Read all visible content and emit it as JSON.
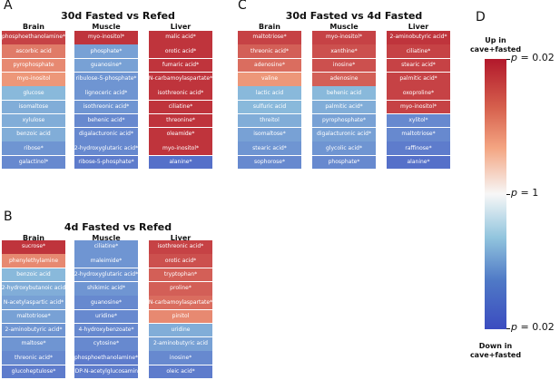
{
  "chart_data": [
    {
      "panel": "A",
      "type": "heatmap",
      "title": "30d Fasted vs Refed",
      "columns": [
        {
          "name": "Brain",
          "rows": [
            {
              "label": "phosphoethanolamine*",
              "value": 0.85
            },
            {
              "label": "ascorbic acid",
              "value": 0.65
            },
            {
              "label": "pyrophosphate",
              "value": 0.6
            },
            {
              "label": "myo-inositol",
              "value": 0.55
            },
            {
              "label": "glucose",
              "value": -0.55
            },
            {
              "label": "isomaltose",
              "value": -0.6
            },
            {
              "label": "xylulose",
              "value": -0.6
            },
            {
              "label": "benzoic acid",
              "value": -0.6
            },
            {
              "label": "ribose*",
              "value": -0.7
            },
            {
              "label": "galactinol*",
              "value": -0.75
            }
          ]
        },
        {
          "name": "Muscle",
          "rows": [
            {
              "label": "myo-inositol*",
              "value": 0.9
            },
            {
              "label": "phosphate*",
              "value": -0.65
            },
            {
              "label": "guanosine*",
              "value": -0.65
            },
            {
              "label": "ribulose-5-phosphate*",
              "value": -0.7
            },
            {
              "label": "lignoceric acid*",
              "value": -0.7
            },
            {
              "label": "isothreonic acid*",
              "value": -0.7
            },
            {
              "label": "behenic acid*",
              "value": -0.75
            },
            {
              "label": "digalacturonic acid*",
              "value": -0.75
            },
            {
              "label": "2-hydroxyglutaric acid*",
              "value": -0.75
            },
            {
              "label": "ribose-5-phosphate*",
              "value": -0.8
            }
          ]
        },
        {
          "name": "Liver",
          "rows": [
            {
              "label": "malic acid*",
              "value": 0.9
            },
            {
              "label": "orotic acid*",
              "value": 0.9
            },
            {
              "label": "fumaric acid*",
              "value": 0.9
            },
            {
              "label": "N-carbamoylaspartate*",
              "value": 0.9
            },
            {
              "label": "isothreonic acid*",
              "value": 0.9
            },
            {
              "label": "ciliatine*",
              "value": 0.9
            },
            {
              "label": "threonine*",
              "value": 0.9
            },
            {
              "label": "oleamide*",
              "value": 0.9
            },
            {
              "label": "myo-inositol*",
              "value": 0.9
            },
            {
              "label": "alanine*",
              "value": -0.85
            }
          ]
        }
      ]
    },
    {
      "panel": "B",
      "type": "heatmap",
      "title": "4d Fasted vs Refed",
      "columns": [
        {
          "name": "Brain",
          "rows": [
            {
              "label": "sucrose*",
              "value": 0.9
            },
            {
              "label": "phenylethylamine",
              "value": 0.6
            },
            {
              "label": "benzoic acid",
              "value": -0.55
            },
            {
              "label": "2-hydroxybutanoic acid",
              "value": -0.6
            },
            {
              "label": "N-acetylaspartic acid*",
              "value": -0.65
            },
            {
              "label": "maltotriose*",
              "value": -0.65
            },
            {
              "label": "2-aminobutyric acid*",
              "value": -0.7
            },
            {
              "label": "maltose*",
              "value": -0.7
            },
            {
              "label": "threonic acid*",
              "value": -0.75
            },
            {
              "label": "glucoheptulose*",
              "value": -0.8
            }
          ]
        },
        {
          "name": "Muscle",
          "rows": [
            {
              "label": "ciliatine*",
              "value": -0.7
            },
            {
              "label": "maleimide*",
              "value": -0.7
            },
            {
              "label": "2-hydroxyglutaric acid*",
              "value": -0.7
            },
            {
              "label": "shikimic acid*",
              "value": -0.7
            },
            {
              "label": "guanosine*",
              "value": -0.75
            },
            {
              "label": "uridine*",
              "value": -0.75
            },
            {
              "label": "4-hydroxybenzoate*",
              "value": -0.75
            },
            {
              "label": "cytosine*",
              "value": -0.75
            },
            {
              "label": "phosphoethanolamine*",
              "value": -0.8
            },
            {
              "label": "UDP-N-acetylglucosamine",
              "value": -0.8
            }
          ]
        },
        {
          "name": "Liver",
          "rows": [
            {
              "label": "isothreonic acid*",
              "value": 0.85
            },
            {
              "label": "orotic acid*",
              "value": 0.8
            },
            {
              "label": "tryptophan*",
              "value": 0.75
            },
            {
              "label": "proline*",
              "value": 0.75
            },
            {
              "label": "N-carbamoylaspartate*",
              "value": 0.7
            },
            {
              "label": "pinitol",
              "value": 0.6
            },
            {
              "label": "uridine",
              "value": -0.6
            },
            {
              "label": "2-aminobutyric acid",
              "value": -0.65
            },
            {
              "label": "inosine*",
              "value": -0.75
            },
            {
              "label": "oleic acid*",
              "value": -0.8
            }
          ]
        }
      ]
    },
    {
      "panel": "C",
      "type": "heatmap",
      "title": "30d Fasted vs 4d Fasted",
      "columns": [
        {
          "name": "Brain",
          "rows": [
            {
              "label": "maltotriose*",
              "value": 0.85
            },
            {
              "label": "threonic acid*",
              "value": 0.75
            },
            {
              "label": "adenosine*",
              "value": 0.7
            },
            {
              "label": "valine",
              "value": 0.55
            },
            {
              "label": "lactic acid",
              "value": -0.55
            },
            {
              "label": "sulfuric acid",
              "value": -0.55
            },
            {
              "label": "threitol",
              "value": -0.6
            },
            {
              "label": "isomaltose*",
              "value": -0.65
            },
            {
              "label": "stearic acid*",
              "value": -0.7
            },
            {
              "label": "sophorose*",
              "value": -0.75
            }
          ]
        },
        {
          "name": "Muscle",
          "rows": [
            {
              "label": "myo-inositol*",
              "value": 0.85
            },
            {
              "label": "xanthine*",
              "value": 0.8
            },
            {
              "label": "inosine*",
              "value": 0.8
            },
            {
              "label": "adenosine",
              "value": 0.75
            },
            {
              "label": "behenic acid",
              "value": -0.55
            },
            {
              "label": "palmitic acid*",
              "value": -0.6
            },
            {
              "label": "pyrophosphate*",
              "value": -0.65
            },
            {
              "label": "digalacturonic acid*",
              "value": -0.65
            },
            {
              "label": "glycolic acid*",
              "value": -0.7
            },
            {
              "label": "phosphate*",
              "value": -0.75
            }
          ]
        },
        {
          "name": "Liver",
          "rows": [
            {
              "label": "2-aminobutyric acid*",
              "value": 0.9
            },
            {
              "label": "ciliatine*",
              "value": 0.85
            },
            {
              "label": "stearic acid*",
              "value": 0.85
            },
            {
              "label": "palmitic acid*",
              "value": 0.85
            },
            {
              "label": "oxoproline*",
              "value": 0.85
            },
            {
              "label": "myo-inositol*",
              "value": 0.85
            },
            {
              "label": "xylitol*",
              "value": -0.75
            },
            {
              "label": "maltotriose*",
              "value": -0.75
            },
            {
              "label": "raffinose*",
              "value": -0.8
            },
            {
              "label": "alanine*",
              "value": -0.85
            }
          ]
        }
      ]
    }
  ],
  "panel_labels": {
    "A": "A",
    "B": "B",
    "C": "C",
    "D": "D"
  },
  "colorbar": {
    "top_label": "Up in\ncave+fasted",
    "bottom_label": "Down in\ncave+fasted",
    "ticks": [
      {
        "text": "p = 0.02",
        "value": 1
      },
      {
        "text": "p = 1",
        "value": 0
      },
      {
        "text": "p = 0.02",
        "value": -1
      }
    ]
  },
  "colors": {
    "up_strong": "#b2182b",
    "up_weak": "#f4a582",
    "neutral": "#f7f7f7",
    "down_weak": "#92c5de",
    "down_strong": "#3b4cc0"
  }
}
